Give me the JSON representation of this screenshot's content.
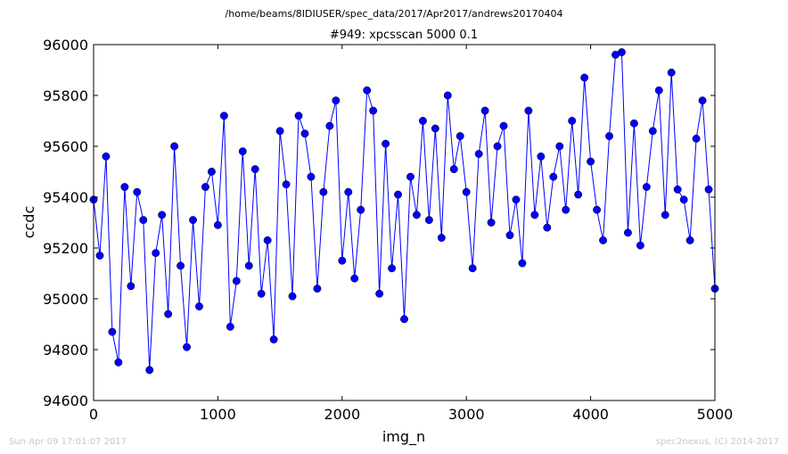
{
  "figure": {
    "supertitle": "/home/beams/8IDIUSER/spec_data/2017/Apr2017/andrews20170404",
    "footer_left": "Sun Apr 09 17:01:07 2017",
    "footer_right": "spec2nexus, (C) 2014-2017"
  },
  "colors": {
    "series": "#0000ff",
    "axes": "#000000",
    "footer_text": "#c8c8c8",
    "background": "#ffffff"
  },
  "chart_data": {
    "type": "line",
    "title": "#949: xpcsscan 5000 0.1",
    "xlabel": "img_n",
    "ylabel": "ccdc",
    "xlim": [
      0,
      5000
    ],
    "ylim": [
      94600,
      96000
    ],
    "xticks": [
      0,
      1000,
      2000,
      3000,
      4000,
      5000
    ],
    "yticks": [
      94600,
      94800,
      95000,
      95200,
      95400,
      95600,
      95800,
      96000
    ],
    "grid": false,
    "legend": "none",
    "marker": "circle",
    "series": [
      {
        "x": [
          0,
          50,
          100,
          150,
          200,
          250,
          300,
          350,
          400,
          450,
          500,
          550,
          600,
          650,
          700,
          750,
          800,
          850,
          900,
          950,
          1000,
          1050,
          1100,
          1150,
          1200,
          1250,
          1300,
          1350,
          1400,
          1450,
          1500,
          1550,
          1600,
          1650,
          1700,
          1750,
          1800,
          1850,
          1900,
          1950,
          2000,
          2050,
          2100,
          2150,
          2200,
          2250,
          2300,
          2350,
          2400,
          2450,
          2500,
          2550,
          2600,
          2650,
          2700,
          2750,
          2800,
          2850,
          2900,
          2950,
          3000,
          3050,
          3100,
          3150,
          3200,
          3250,
          3300,
          3350,
          3400,
          3450,
          3500,
          3550,
          3600,
          3650,
          3700,
          3750,
          3800,
          3850,
          3900,
          3950,
          4000,
          4050,
          4100,
          4150,
          4200,
          4250,
          4300,
          4350,
          4400,
          4450,
          4500,
          4550,
          4600,
          4650,
          4700,
          4750,
          4800,
          4850,
          4900,
          4950,
          5000
        ],
        "y": [
          95390,
          95170,
          95560,
          94870,
          94750,
          95440,
          95050,
          95420,
          95310,
          94720,
          95180,
          95330,
          94940,
          95600,
          95130,
          94810,
          95310,
          94970,
          95440,
          95500,
          95290,
          95720,
          94890,
          95070,
          95580,
          95130,
          95510,
          95020,
          95230,
          94840,
          95660,
          95450,
          95010,
          95720,
          95650,
          95480,
          95040,
          95420,
          95680,
          95780,
          95150,
          95420,
          95080,
          95350,
          95820,
          95740,
          95020,
          95610,
          95120,
          95410,
          94920,
          95480,
          95330,
          95700,
          95310,
          95670,
          95240,
          95800,
          95510,
          95640,
          95420,
          95120,
          95570,
          95740,
          95300,
          95600,
          95680,
          95250,
          95390,
          95140,
          95740,
          95330,
          95560,
          95280,
          95480,
          95600,
          95350,
          95700,
          95410,
          95870,
          95540,
          95350,
          95230,
          95640,
          95960,
          95970,
          95260,
          95690,
          95210,
          95440,
          95660,
          95820,
          95330,
          95890,
          95430,
          95390,
          95230,
          95630,
          95780,
          95430,
          95040
        ]
      }
    ]
  }
}
